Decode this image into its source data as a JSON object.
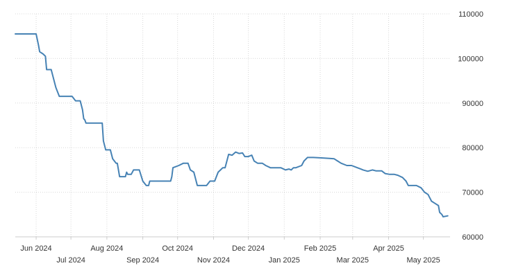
{
  "chart_data": {
    "type": "line",
    "title": "",
    "xlabel": "",
    "ylabel": "",
    "grid": true,
    "line_color": "#4682b4",
    "ylim": [
      60000,
      110000
    ],
    "y_ticks": [
      {
        "value": 60000,
        "label": "60000"
      },
      {
        "value": 70000,
        "label": "70000"
      },
      {
        "value": 80000,
        "label": "80000"
      },
      {
        "value": 90000,
        "label": "90000"
      },
      {
        "value": 100000,
        "label": "100000"
      },
      {
        "value": 110000,
        "label": "110000"
      }
    ],
    "x_range": [
      "2024-05-14",
      "2025-05-24"
    ],
    "x_ticks": [
      {
        "date": "2024-06-01",
        "label": "Jun 2024",
        "row": 1
      },
      {
        "date": "2024-07-01",
        "label": "Jul 2024",
        "row": 2
      },
      {
        "date": "2024-08-01",
        "label": "Aug 2024",
        "row": 1
      },
      {
        "date": "2024-09-01",
        "label": "Sep 2024",
        "row": 2
      },
      {
        "date": "2024-10-01",
        "label": "Oct 2024",
        "row": 1
      },
      {
        "date": "2024-11-01",
        "label": "Nov 2024",
        "row": 2
      },
      {
        "date": "2024-12-01",
        "label": "Dec 2024",
        "row": 1
      },
      {
        "date": "2025-01-01",
        "label": "Jan 2025",
        "row": 2
      },
      {
        "date": "2025-02-01",
        "label": "Feb 2025",
        "row": 1
      },
      {
        "date": "2025-03-01",
        "label": "Mar 2025",
        "row": 2
      },
      {
        "date": "2025-04-01",
        "label": "Apr 2025",
        "row": 1
      },
      {
        "date": "2025-05-01",
        "label": "May 2025",
        "row": 2
      }
    ],
    "series": [
      {
        "points": [
          [
            "2024-05-14",
            105500
          ],
          [
            "2024-06-01",
            105500
          ],
          [
            "2024-06-03",
            103000
          ],
          [
            "2024-06-04",
            101500
          ],
          [
            "2024-06-07",
            101000
          ],
          [
            "2024-06-09",
            100500
          ],
          [
            "2024-06-10",
            97500
          ],
          [
            "2024-06-14",
            97500
          ],
          [
            "2024-06-18",
            93500
          ],
          [
            "2024-06-21",
            91500
          ],
          [
            "2024-07-02",
            91500
          ],
          [
            "2024-07-05",
            90500
          ],
          [
            "2024-07-09",
            90500
          ],
          [
            "2024-07-11",
            88500
          ],
          [
            "2024-07-12",
            86500
          ],
          [
            "2024-07-13",
            86200
          ],
          [
            "2024-07-14",
            85500
          ],
          [
            "2024-07-28",
            85500
          ],
          [
            "2024-07-29",
            81500
          ],
          [
            "2024-07-31",
            79500
          ],
          [
            "2024-08-04",
            79500
          ],
          [
            "2024-08-06",
            77500
          ],
          [
            "2024-08-09",
            76500
          ],
          [
            "2024-08-10",
            76500
          ],
          [
            "2024-08-12",
            73500
          ],
          [
            "2024-08-17",
            73500
          ],
          [
            "2024-08-18",
            74500
          ],
          [
            "2024-08-19",
            74000
          ],
          [
            "2024-08-22",
            74000
          ],
          [
            "2024-08-24",
            75000
          ],
          [
            "2024-08-29",
            75000
          ],
          [
            "2024-09-01",
            72500
          ],
          [
            "2024-09-04",
            71500
          ],
          [
            "2024-09-06",
            71500
          ],
          [
            "2024-09-07",
            72500
          ],
          [
            "2024-09-25",
            72500
          ],
          [
            "2024-09-26",
            73500
          ],
          [
            "2024-09-27",
            75500
          ],
          [
            "2024-10-02",
            76000
          ],
          [
            "2024-10-06",
            76500
          ],
          [
            "2024-10-10",
            76500
          ],
          [
            "2024-10-12",
            75000
          ],
          [
            "2024-10-15",
            74500
          ],
          [
            "2024-10-18",
            71500
          ],
          [
            "2024-10-26",
            71500
          ],
          [
            "2024-10-29",
            72500
          ],
          [
            "2024-11-02",
            72500
          ],
          [
            "2024-11-05",
            74500
          ],
          [
            "2024-11-07",
            75000
          ],
          [
            "2024-11-09",
            75500
          ],
          [
            "2024-11-11",
            75500
          ],
          [
            "2024-11-14",
            78500
          ],
          [
            "2024-11-17",
            78300
          ],
          [
            "2024-11-20",
            79000
          ],
          [
            "2024-11-23",
            78700
          ],
          [
            "2024-11-26",
            78800
          ],
          [
            "2024-11-28",
            78000
          ],
          [
            "2024-12-01",
            78000
          ],
          [
            "2024-12-04",
            78300
          ],
          [
            "2024-12-06",
            77000
          ],
          [
            "2024-12-09",
            76500
          ],
          [
            "2024-12-13",
            76500
          ],
          [
            "2024-12-16",
            76000
          ],
          [
            "2024-12-20",
            75500
          ],
          [
            "2024-12-24",
            75500
          ],
          [
            "2024-12-29",
            75500
          ],
          [
            "2025-01-02",
            75000
          ],
          [
            "2025-01-05",
            75200
          ],
          [
            "2025-01-07",
            75000
          ],
          [
            "2025-01-09",
            75500
          ],
          [
            "2025-01-11",
            75500
          ],
          [
            "2025-01-16",
            76000
          ],
          [
            "2025-01-18",
            77000
          ],
          [
            "2025-01-21",
            77800
          ],
          [
            "2025-01-26",
            77800
          ],
          [
            "2025-02-02",
            77700
          ],
          [
            "2025-02-09",
            77600
          ],
          [
            "2025-02-13",
            77500
          ],
          [
            "2025-02-16",
            77000
          ],
          [
            "2025-02-19",
            76500
          ],
          [
            "2025-02-24",
            76000
          ],
          [
            "2025-02-28",
            76000
          ],
          [
            "2025-03-05",
            75500
          ],
          [
            "2025-03-08",
            75200
          ],
          [
            "2025-03-10",
            75000
          ],
          [
            "2025-03-14",
            74700
          ],
          [
            "2025-03-18",
            75000
          ],
          [
            "2025-03-21",
            74800
          ],
          [
            "2025-03-26",
            74800
          ],
          [
            "2025-03-29",
            74200
          ],
          [
            "2025-04-02",
            74000
          ],
          [
            "2025-04-06",
            74000
          ],
          [
            "2025-04-09",
            73800
          ],
          [
            "2025-04-13",
            73300
          ],
          [
            "2025-04-16",
            72500
          ],
          [
            "2025-04-18",
            71500
          ],
          [
            "2025-04-25",
            71500
          ],
          [
            "2025-04-29",
            71000
          ],
          [
            "2025-05-02",
            70000
          ],
          [
            "2025-05-05",
            69500
          ],
          [
            "2025-05-08",
            68000
          ],
          [
            "2025-05-11",
            67500
          ],
          [
            "2025-05-14",
            67000
          ],
          [
            "2025-05-15",
            65500
          ],
          [
            "2025-05-17",
            65000
          ],
          [
            "2025-05-18",
            64500
          ],
          [
            "2025-05-22",
            64700
          ]
        ]
      }
    ]
  }
}
